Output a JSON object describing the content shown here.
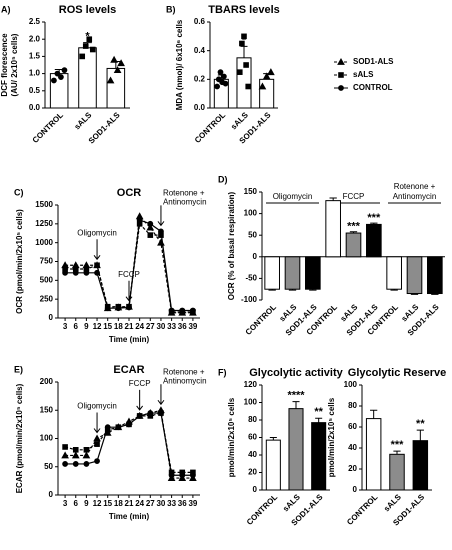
{
  "chart_data": [
    {
      "type": "bar",
      "panel": "A)",
      "title": "ROS levels",
      "ylabel": [
        "DCF florescence",
        "(AU/ 2x10⁵ cells)"
      ],
      "categories": [
        "CONTROL",
        "sALS",
        "SOD1-ALS"
      ],
      "values": [
        1.0,
        1.75,
        1.15
      ],
      "errors": [
        0.12,
        0.15,
        0.2
      ],
      "points": [
        [
          0.8,
          1.0,
          0.9,
          1.1
        ],
        [
          1.5,
          1.8,
          2.0,
          1.7
        ],
        [
          0.8,
          1.4,
          1.1,
          1.3
        ]
      ],
      "markers": [
        "circle",
        "square",
        "triangle"
      ],
      "colors": [
        "#ffffff",
        "#ffffff",
        "#ffffff"
      ],
      "ylim": [
        0,
        2.5
      ],
      "yticks": [
        {
          "value": 0,
          "label": "0.0"
        },
        0.5,
        {
          "value": 1,
          "label": "1.0"
        },
        1.5,
        {
          "value": 2,
          "label": "2.0"
        },
        2.5
      ],
      "annotations": [
        {
          "text": "*",
          "index": 1
        }
      ]
    },
    {
      "type": "bar",
      "panel": "B)",
      "title": "TBARS levels",
      "ylabel": [
        "MDA (nmol)/ 6x10⁶ cells"
      ],
      "categories": [
        "CONTROL",
        "sALS",
        "SOD1-ALS"
      ],
      "values": [
        0.2,
        0.35,
        0.2
      ],
      "errors": [
        0.03,
        0.08,
        0.04
      ],
      "points": [
        [
          0.15,
          0.2,
          0.25,
          0.18,
          0.22,
          0.17
        ],
        [
          0.25,
          0.45,
          0.5,
          0.3,
          0.15
        ],
        [
          0.15,
          0.22,
          0.25
        ]
      ],
      "markers": [
        "circle",
        "square",
        "triangle"
      ],
      "colors": [
        "#ffffff",
        "#ffffff",
        "#ffffff"
      ],
      "ylim": [
        0,
        0.6
      ],
      "yticks": [
        {
          "value": 0,
          "label": "0.0"
        },
        0.2,
        0.4,
        0.6
      ],
      "annotations": [
        {
          "text": "*",
          "index": 1
        }
      ]
    },
    {
      "type": "line",
      "panel": "C)",
      "title": "OCR",
      "xlabel": "Time (min)",
      "ylabel": [
        "OCR (pmol/min/2x10⁵ cells)"
      ],
      "x": [
        3,
        6,
        9,
        12,
        15,
        18,
        21,
        24,
        27,
        30,
        33,
        36,
        39
      ],
      "xlim": [
        1,
        41
      ],
      "xticks": [
        3,
        6,
        9,
        12,
        15,
        18,
        21,
        24,
        27,
        30,
        33,
        36,
        39
      ],
      "ylim": [
        0,
        1500
      ],
      "yticks": [
        0,
        250,
        500,
        750,
        1000,
        1250,
        1500
      ],
      "legend": true,
      "series": [
        {
          "name": "SOD1-ALS",
          "color": "#000000",
          "marker": "triangle",
          "dash": true,
          "values": [
            700,
            700,
            700,
            700,
            130,
            140,
            150,
            1350,
            1200,
            1000,
            70,
            70,
            70
          ]
        },
        {
          "name": "sALS",
          "color": "#000000",
          "marker": "square",
          "dash": true,
          "values": [
            650,
            650,
            650,
            700,
            150,
            150,
            150,
            1250,
            1100,
            1100,
            80,
            80,
            80
          ]
        },
        {
          "name": "CONTROL",
          "color": "#000000",
          "marker": "circle",
          "dash": false,
          "values": [
            600,
            600,
            600,
            600,
            130,
            130,
            140,
            1300,
            1250,
            1150,
            100,
            100,
            100
          ]
        }
      ],
      "annotations": [
        {
          "text": [
            "Oligomycin"
          ],
          "x": 12
        },
        {
          "text": [
            "FCCP"
          ],
          "x": 21
        },
        {
          "text": [
            "Rotenone +",
            "Antinomycin"
          ],
          "x": 30
        }
      ]
    },
    {
      "type": "grouped_bar",
      "panel": "D)",
      "ylabel": [
        "OCR (% of basal respiration)"
      ],
      "categories": [
        "CONTROL",
        "sALS",
        "SOD1-ALS"
      ],
      "colors": [
        "#ffffff",
        "#8c8c8c",
        "#000000"
      ],
      "groups": [
        {
          "name": [
            "Oligomycin"
          ],
          "values": [
            -75,
            -75,
            -75
          ],
          "errors": [
            2,
            2,
            2
          ]
        },
        {
          "name": [
            "FCCP"
          ],
          "values": [
            130,
            55,
            75
          ],
          "errors": [
            6,
            3,
            3
          ]
        },
        {
          "name": [
            "Rotenone +",
            "Antinomycin"
          ],
          "values": [
            -75,
            -85,
            -85
          ],
          "errors": [
            2,
            2,
            2
          ]
        }
      ],
      "ylim": [
        -100,
        150
      ],
      "yticks": [
        -100,
        -50,
        0,
        50,
        100,
        150
      ],
      "annotations": [
        {
          "text": "***",
          "group": 1,
          "index": 1
        },
        {
          "text": "***",
          "group": 1,
          "index": 2
        }
      ]
    },
    {
      "type": "line",
      "panel": "E)",
      "title": "ECAR",
      "xlabel": "Time (min)",
      "ylabel": [
        "ECAR (pmol/min/2x10⁵ cells)"
      ],
      "x": [
        3,
        6,
        9,
        12,
        15,
        18,
        21,
        24,
        27,
        30,
        33,
        36,
        39
      ],
      "xlim": [
        1,
        41
      ],
      "xticks": [
        3,
        6,
        9,
        12,
        15,
        18,
        21,
        24,
        27,
        30,
        33,
        36,
        39
      ],
      "ylim": [
        0,
        200
      ],
      "yticks": [
        0,
        50,
        100,
        150,
        200
      ],
      "legend": false,
      "series": [
        {
          "name": "SOD1-ALS",
          "color": "#000000",
          "marker": "triangle",
          "dash": true,
          "values": [
            70,
            70,
            70,
            100,
            110,
            120,
            130,
            140,
            145,
            150,
            30,
            30,
            30
          ]
        },
        {
          "name": "sALS",
          "color": "#000000",
          "marker": "square",
          "dash": true,
          "values": [
            85,
            80,
            80,
            90,
            115,
            120,
            125,
            140,
            140,
            145,
            40,
            40,
            40
          ]
        },
        {
          "name": "CONTROL",
          "color": "#000000",
          "marker": "circle",
          "dash": false,
          "values": [
            55,
            55,
            55,
            60,
            120,
            120,
            125,
            140,
            145,
            145,
            35,
            35,
            35
          ]
        }
      ],
      "annotations": [
        {
          "text": [
            "Oligomycin"
          ],
          "x": 12
        },
        {
          "text": [
            "FCCP"
          ],
          "x": 24
        },
        {
          "text": [
            "Rotenone +",
            "Antinomycin"
          ],
          "x": 30
        }
      ]
    },
    {
      "type": "bar",
      "panel": "F)",
      "title": "Glycolytic activity",
      "ylabel": [
        "pmol/min/2x10⁵ cells"
      ],
      "categories": [
        "CONTROL",
        "sALS",
        "SOD1-ALS"
      ],
      "values": [
        57,
        93,
        77
      ],
      "errors": [
        3,
        8,
        5
      ],
      "colors": [
        "#ffffff",
        "#8c8c8c",
        "#000000"
      ],
      "ylim": [
        0,
        120
      ],
      "yticks": [
        0,
        20,
        40,
        60,
        80,
        100,
        120
      ],
      "annotations": [
        {
          "text": "****",
          "index": 1
        },
        {
          "text": "**",
          "index": 2
        }
      ]
    },
    {
      "type": "bar",
      "title": "Glycolytic Reserve",
      "ylabel": [
        "pmol/min/2x10⁵ cells"
      ],
      "categories": [
        "CONTROL",
        "sALS",
        "SOD1-ALS"
      ],
      "values": [
        68,
        34,
        47
      ],
      "errors": [
        8,
        3,
        10
      ],
      "colors": [
        "#ffffff",
        "#8c8c8c",
        "#000000"
      ],
      "ylim": [
        0,
        100
      ],
      "yticks": [
        0,
        20,
        40,
        60,
        80,
        100
      ],
      "annotations": [
        {
          "text": "***",
          "index": 1
        },
        {
          "text": "**",
          "index": 2
        }
      ]
    }
  ]
}
